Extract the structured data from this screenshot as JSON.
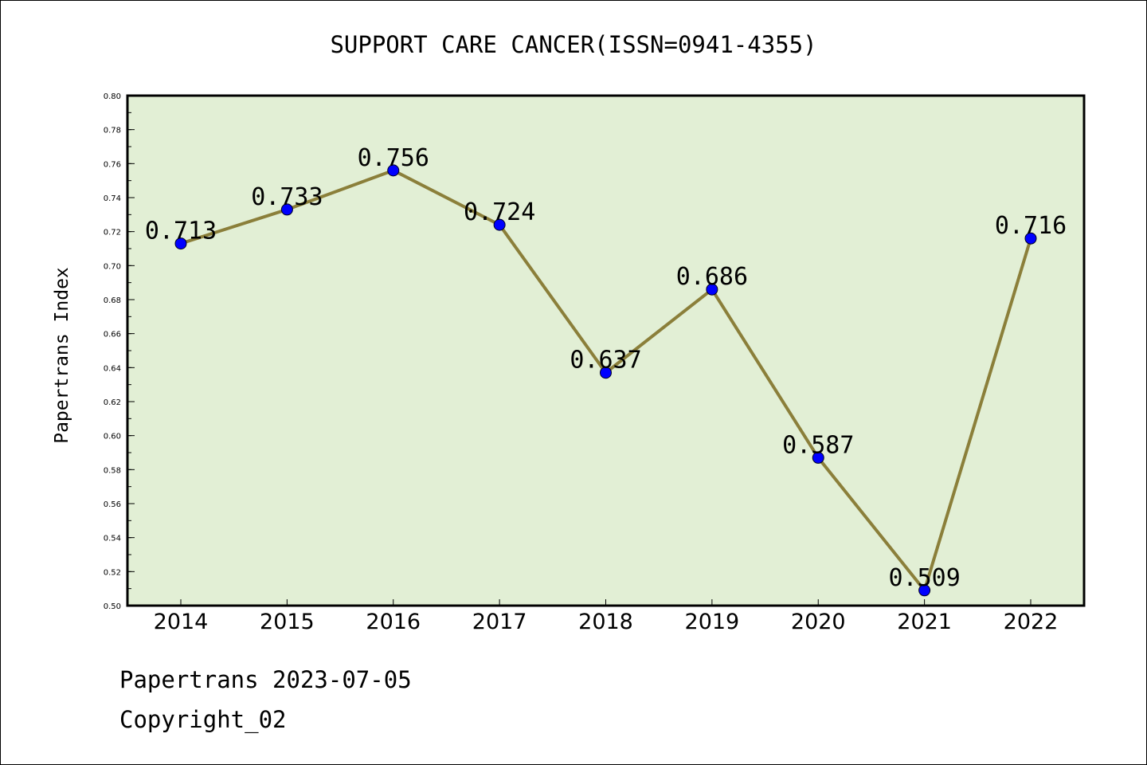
{
  "chart_data": {
    "type": "line",
    "title": "SUPPORT CARE CANCER(ISSN=0941-4355)",
    "xlabel": "",
    "ylabel": "Papertrans Index",
    "categories": [
      "2014",
      "2015",
      "2016",
      "2017",
      "2018",
      "2019",
      "2020",
      "2021",
      "2022"
    ],
    "series": [
      {
        "values": [
          0.713,
          0.733,
          0.756,
          0.724,
          0.637,
          0.686,
          0.587,
          0.509,
          0.716
        ],
        "data_labels": [
          "0.713",
          "0.733",
          "0.756",
          "0.724",
          "0.637",
          "0.686",
          "0.587",
          "0.509",
          "0.716"
        ]
      }
    ],
    "ylim": [
      0.5,
      0.8
    ],
    "y_ticks": [
      "0.50",
      "0.52",
      "0.54",
      "0.56",
      "0.58",
      "0.60",
      "0.62",
      "0.64",
      "0.66",
      "0.68",
      "0.70",
      "0.72",
      "0.74",
      "0.76",
      "0.78",
      "0.80"
    ],
    "grid": false,
    "legend": "none",
    "colors": {
      "plot_background": "#e2efd5",
      "line": "#8b7f3a",
      "marker": "#0000ff",
      "axis": "#000000"
    }
  },
  "footer": {
    "date_line": "Papertrans 2023-07-05",
    "copyright_line": "Copyright_02"
  }
}
